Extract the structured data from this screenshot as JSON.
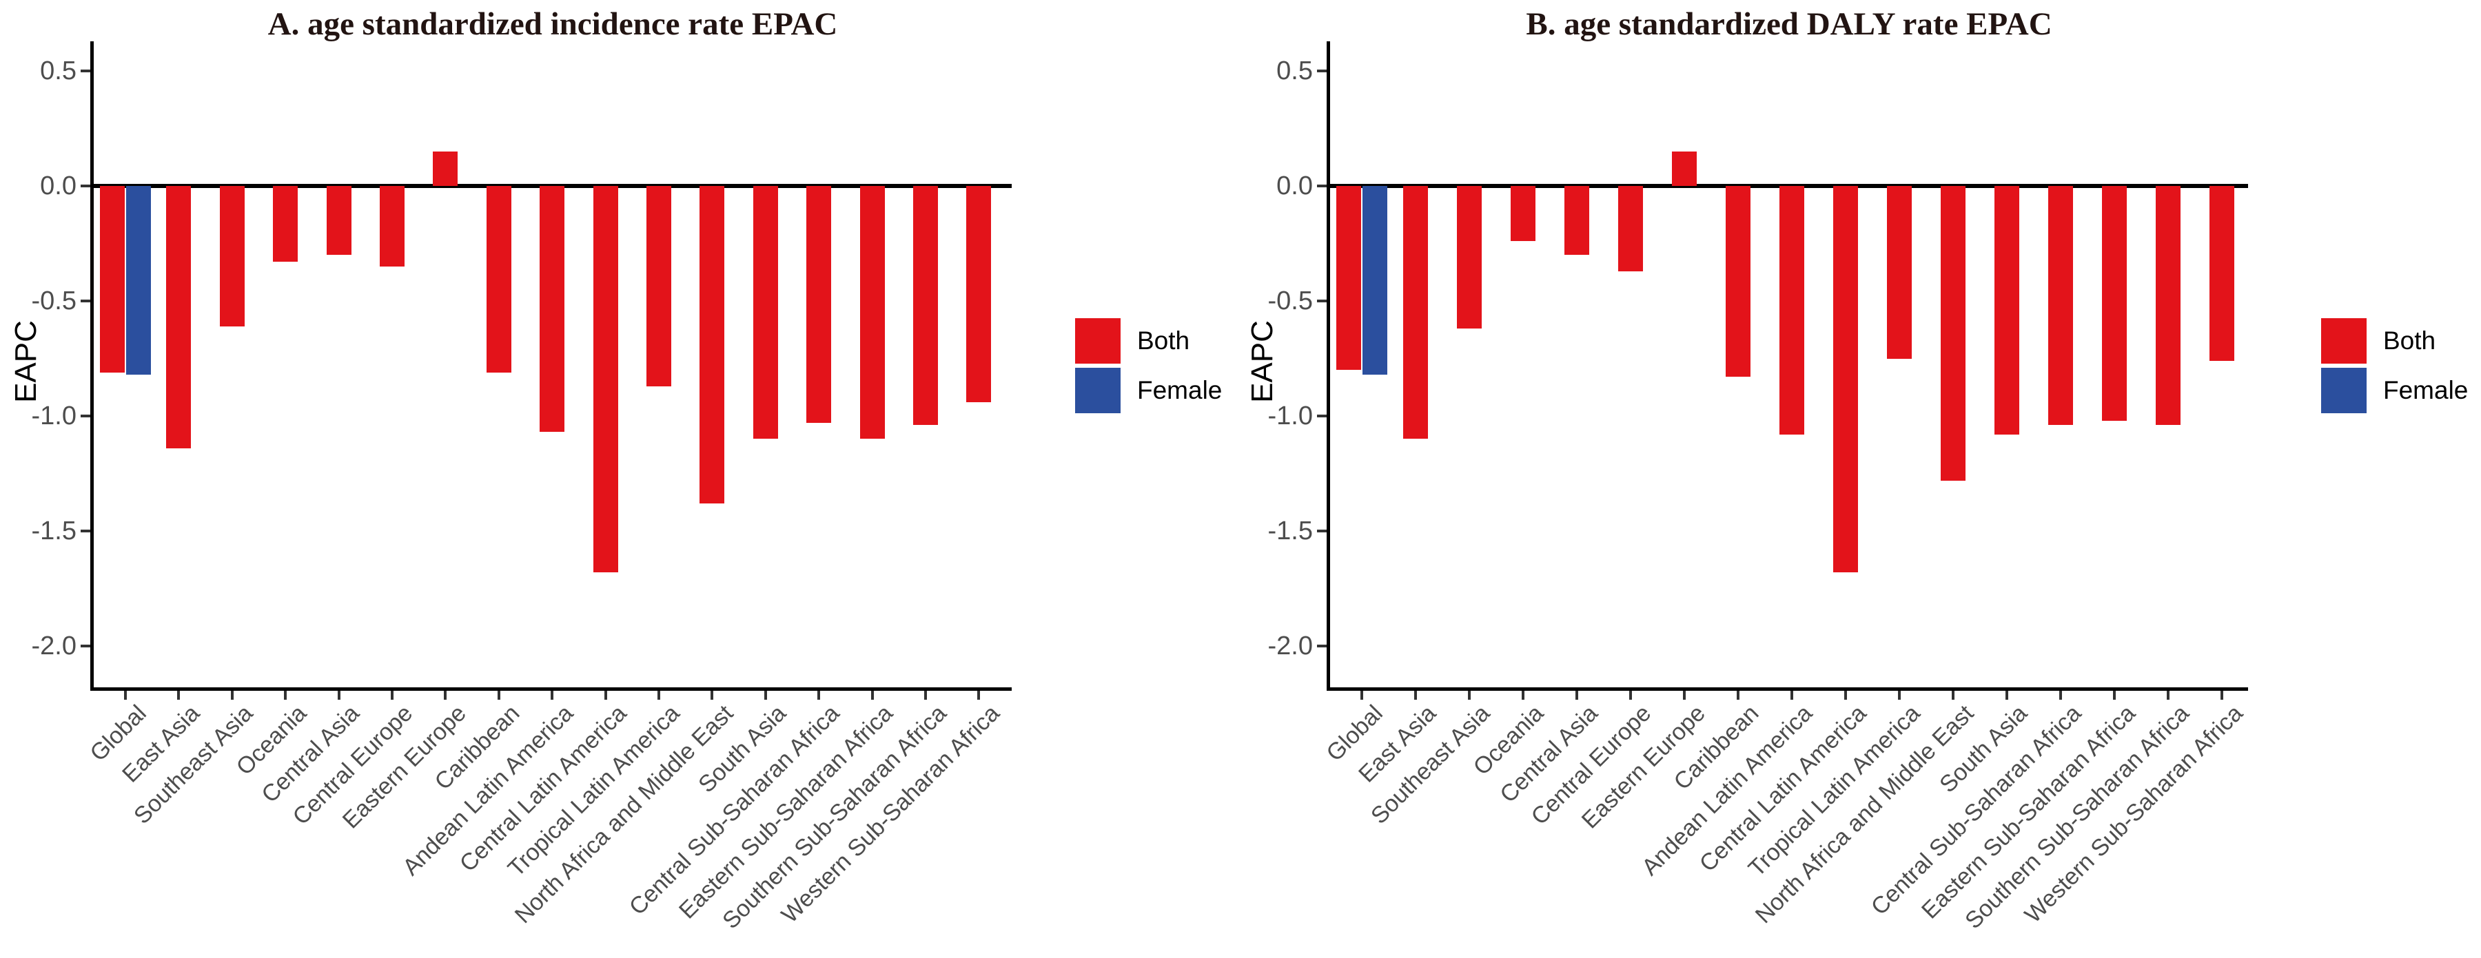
{
  "page": {
    "background": "#ffffff"
  },
  "legend": {
    "items": [
      {
        "label": "Both",
        "color": "#e3131a"
      },
      {
        "label": "Female",
        "color": "#2b4f9e"
      }
    ]
  },
  "chart_data": [
    {
      "type": "bar",
      "title": "A. age standardized incidence rate EPAC",
      "xlabel": "",
      "ylabel": "EAPC",
      "ylim": [
        -2.2,
        0.7
      ],
      "yticks": [
        "0.5",
        "0.0",
        "-0.5",
        "-1.0",
        "-1.5",
        "-2.0"
      ],
      "grid": false,
      "legend_position": "right",
      "categories": [
        "Global",
        "East Asia",
        "Southeast Asia",
        "Oceania",
        "Central Asia",
        "Central Europe",
        "Eastern Europe",
        "Caribbean",
        "Andean Latin America",
        "Central Latin America",
        "Tropical Latin America",
        "North Africa and Middle East",
        "South Asia",
        "Central Sub-Saharan Africa",
        "Eastern Sub-Saharan Africa",
        "Southern Sub-Saharan Africa",
        "Western Sub-Saharan Africa"
      ],
      "series": [
        {
          "name": "Both",
          "values": [
            -0.81,
            -1.14,
            -0.61,
            -0.33,
            -0.3,
            -0.35,
            0.15,
            -0.81,
            -1.07,
            -1.68,
            -0.87,
            -1.38,
            -1.1,
            -1.03,
            -1.1,
            -1.04,
            -0.94
          ]
        },
        {
          "name": "Female",
          "values": [
            -0.82,
            null,
            null,
            null,
            null,
            null,
            null,
            null,
            null,
            null,
            null,
            null,
            null,
            null,
            null,
            null,
            null
          ]
        }
      ]
    },
    {
      "type": "bar",
      "title": "B. age standardized DALY rate EPAC",
      "xlabel": "",
      "ylabel": "EAPC",
      "ylim": [
        -2.2,
        0.7
      ],
      "yticks": [
        "0.5",
        "0.0",
        "-0.5",
        "-1.0",
        "-1.5",
        "-2.0"
      ],
      "grid": false,
      "legend_position": "right",
      "categories": [
        "Global",
        "East Asia",
        "Southeast Asia",
        "Oceania",
        "Central Asia",
        "Central Europe",
        "Eastern Europe",
        "Caribbean",
        "Andean Latin America",
        "Central Latin America",
        "Tropical Latin America",
        "North Africa and Middle East",
        "South Asia",
        "Central Sub-Saharan Africa",
        "Eastern Sub-Saharan Africa",
        "Southern Sub-Saharan Africa",
        "Western Sub-Saharan Africa"
      ],
      "series": [
        {
          "name": "Both",
          "values": [
            -0.8,
            -1.1,
            -0.62,
            -0.24,
            -0.3,
            -0.37,
            0.15,
            -0.83,
            -1.08,
            -1.68,
            -0.75,
            -1.28,
            -1.08,
            -1.04,
            -1.02,
            -1.04,
            -0.76
          ]
        },
        {
          "name": "Female",
          "values": [
            -0.82,
            null,
            null,
            null,
            null,
            null,
            null,
            null,
            null,
            null,
            null,
            null,
            null,
            null,
            null,
            null,
            null
          ]
        }
      ]
    }
  ]
}
